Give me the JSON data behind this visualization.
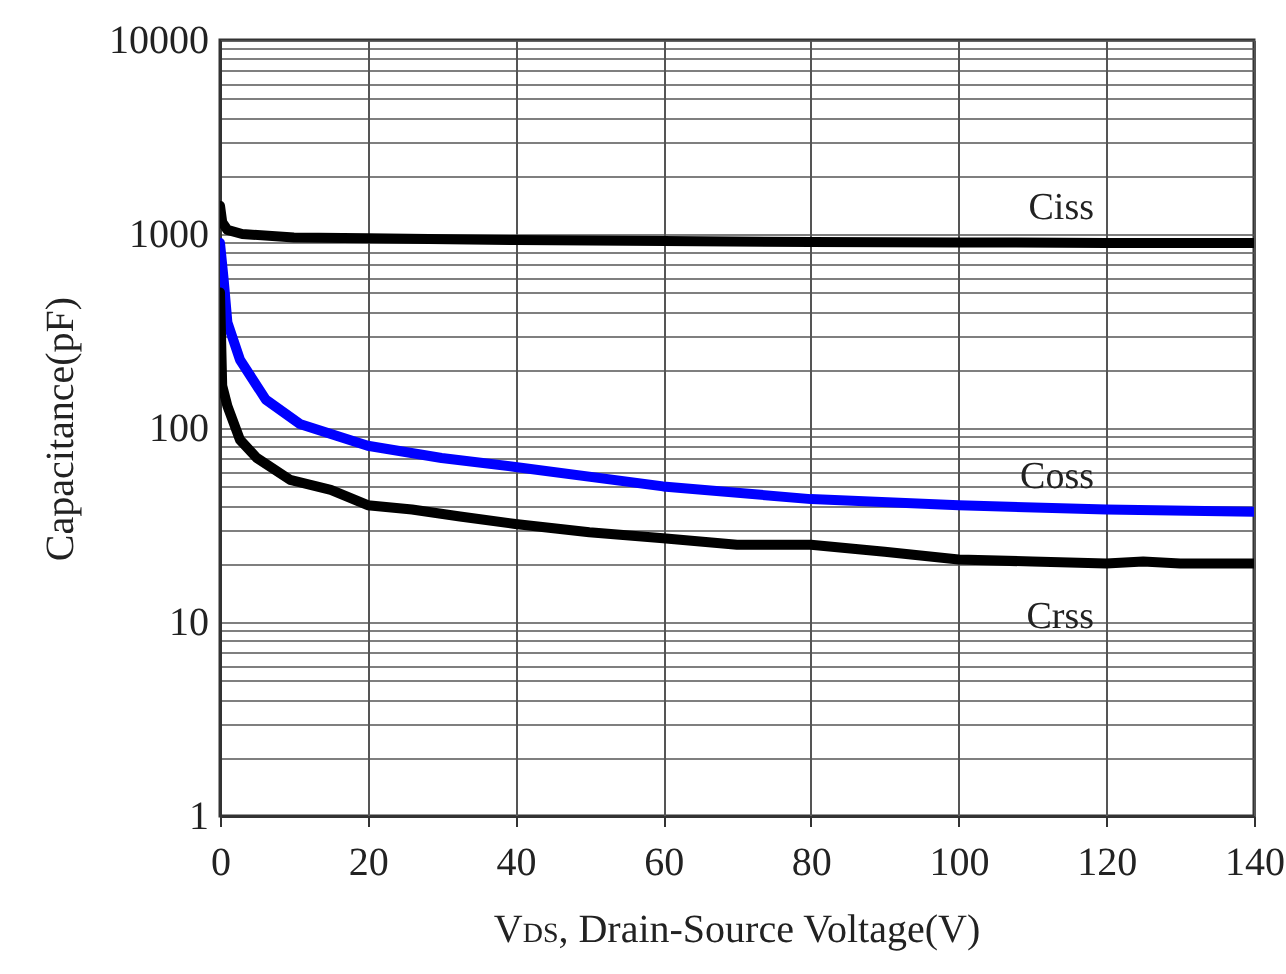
{
  "chart_data": {
    "type": "line",
    "xlabel": "V$_{DS}$, Drain-Source Voltage(V)",
    "ylabel": "Capacitance(pF)",
    "log": true,
    "grid": true,
    "xlim": [
      0,
      140
    ],
    "xticks": [
      0,
      20,
      40,
      60,
      80,
      100,
      120,
      140
    ],
    "ylim": [
      1,
      10000
    ],
    "yticks": [
      1,
      {
        "value": 2,
        "label": null
      },
      {
        "value": 3,
        "label": null
      },
      {
        "value": 4,
        "label": null
      },
      {
        "value": 5,
        "label": null
      },
      {
        "value": 6,
        "label": null
      },
      {
        "value": 7,
        "label": null
      },
      {
        "value": 8,
        "label": null
      },
      {
        "value": 9,
        "label": null
      },
      10,
      {
        "value": 20,
        "label": null
      },
      {
        "value": 30,
        "label": null
      },
      {
        "value": 40,
        "label": null
      },
      {
        "value": 50,
        "label": null
      },
      {
        "value": 60,
        "label": null
      },
      {
        "value": 70,
        "label": null
      },
      {
        "value": 80,
        "label": null
      },
      {
        "value": 90,
        "label": null
      },
      100,
      {
        "value": 200,
        "label": null
      },
      {
        "value": 300,
        "label": null
      },
      {
        "value": 400,
        "label": null
      },
      {
        "value": 500,
        "label": null
      },
      {
        "value": 600,
        "label": null
      },
      {
        "value": 700,
        "label": null
      },
      {
        "value": 800,
        "label": null
      },
      {
        "value": 900,
        "label": null
      },
      1000,
      {
        "value": 2000,
        "label": null
      },
      {
        "value": 3000,
        "label": null
      },
      {
        "value": 4000,
        "label": null
      },
      {
        "value": 5000,
        "label": null
      },
      {
        "value": 6000,
        "label": null
      },
      {
        "value": 7000,
        "label": null
      },
      {
        "value": 8000,
        "label": null
      },
      {
        "value": 9000,
        "label": null
      },
      10000
    ],
    "series": [
      {
        "name": "Ciss",
        "color": "#000000",
        "x": [
          0,
          0.3,
          1,
          3,
          10,
          20,
          40,
          60,
          80,
          100,
          120,
          140
        ],
        "values": [
          1400,
          1150,
          1050,
          1000,
          960,
          950,
          930,
          920,
          910,
          905,
          900,
          900
        ]
      },
      {
        "name": "Coss",
        "color": "#0000ff",
        "x": [
          0,
          0.5,
          1,
          2.7,
          6.2,
          10.8,
          20,
          30,
          40,
          60,
          80,
          100,
          120,
          140
        ],
        "values": [
          900,
          580,
          350,
          225,
          140,
          105,
          81,
          70,
          63,
          50,
          43,
          40,
          38,
          37
        ]
      },
      {
        "name": "Crss",
        "color": "#000000",
        "x": [
          0,
          0.3,
          1,
          2.7,
          5,
          9.5,
          15,
          20,
          26,
          32.5,
          40,
          50,
          60,
          70,
          80,
          90,
          100,
          110,
          120,
          125,
          130,
          140
        ],
        "values": [
          500,
          165,
          130,
          87,
          70,
          54,
          48,
          40,
          38,
          35,
          32,
          29,
          27,
          25,
          25,
          23,
          21,
          20.5,
          20,
          20.5,
          20,
          20
        ]
      }
    ]
  }
}
